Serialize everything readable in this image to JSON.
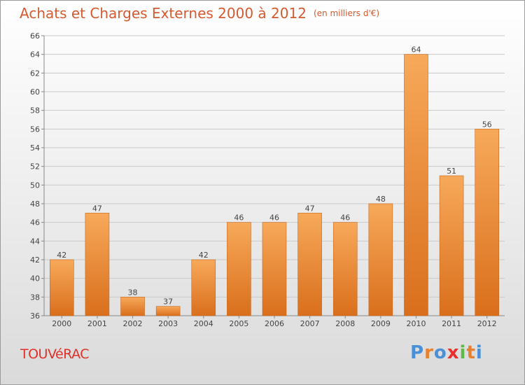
{
  "header": {
    "title": "Achats et Charges Externes 2000 à 2012",
    "subtitle": "(en milliers d'€)"
  },
  "footer": {
    "town": "TOUVéRAC",
    "logo": [
      "P",
      "r",
      "o",
      "x",
      "i",
      "t",
      "i"
    ],
    "logo_colors": [
      "#4a90d9",
      "#e8812f",
      "#4a90d9",
      "#e8312f",
      "#5fb84a",
      "#e8812f",
      "#4a90d9"
    ]
  },
  "chart_data": {
    "type": "bar",
    "title": "Achats et Charges Externes 2000 à 2012",
    "subtitle": "(en milliers d'€)",
    "categories": [
      "2000",
      "2001",
      "2002",
      "2003",
      "2004",
      "2005",
      "2006",
      "2007",
      "2008",
      "2009",
      "2010",
      "2011",
      "2012"
    ],
    "values": [
      42,
      47,
      38,
      37,
      42,
      46,
      46,
      47,
      46,
      48,
      64,
      51,
      56
    ],
    "ylim": [
      36,
      66
    ],
    "yticks": [
      36,
      38,
      40,
      42,
      44,
      46,
      48,
      50,
      52,
      54,
      56,
      58,
      60,
      62,
      64,
      66
    ],
    "grid": true,
    "bar_color_top": "#f7a95a",
    "bar_color_bottom": "#d96f1c",
    "bar_edge": "#c8671d"
  }
}
